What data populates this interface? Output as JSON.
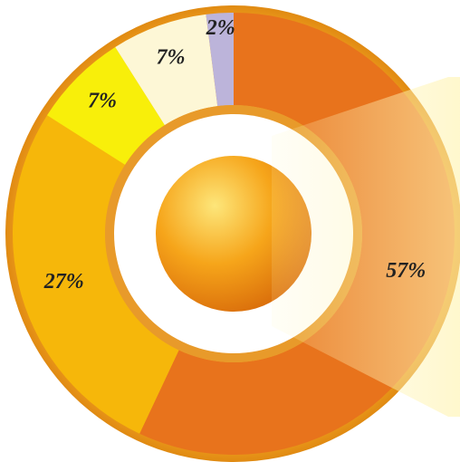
{
  "chart_data": {
    "type": "pie",
    "values": [
      57,
      27,
      7,
      7,
      2
    ],
    "value_labels": [
      "57%",
      "27%",
      "7%",
      "7%",
      "2%"
    ],
    "colors": [
      "#e8731c",
      "#f6b70a",
      "#f8ef0a",
      "#fdf7d6",
      "#bcb4da"
    ]
  }
}
